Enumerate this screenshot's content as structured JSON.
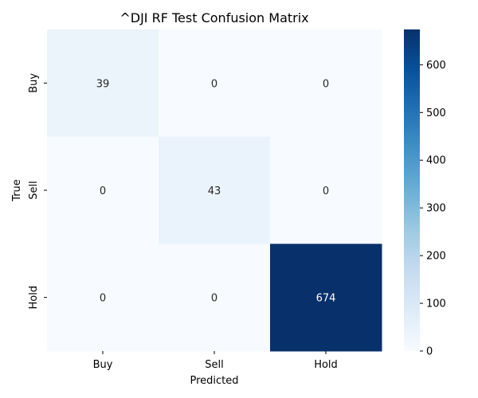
{
  "chart_data": {
    "type": "heatmap",
    "title": "^DJI RF Test Confusion Matrix",
    "xlabel": "Predicted",
    "ylabel": "True",
    "x_categories": [
      "Buy",
      "Sell",
      "Hold"
    ],
    "y_categories": [
      "Buy",
      "Sell",
      "Hold"
    ],
    "values": [
      [
        39,
        0,
        0
      ],
      [
        0,
        43,
        0
      ],
      [
        0,
        0,
        674
      ]
    ],
    "colorbar": {
      "range": [
        0,
        674
      ],
      "ticks": [
        0,
        100,
        200,
        300,
        400,
        500,
        600
      ],
      "colormap": "Blues"
    },
    "colors": {
      "low": "#f7fbff",
      "high": "#08306b"
    }
  }
}
